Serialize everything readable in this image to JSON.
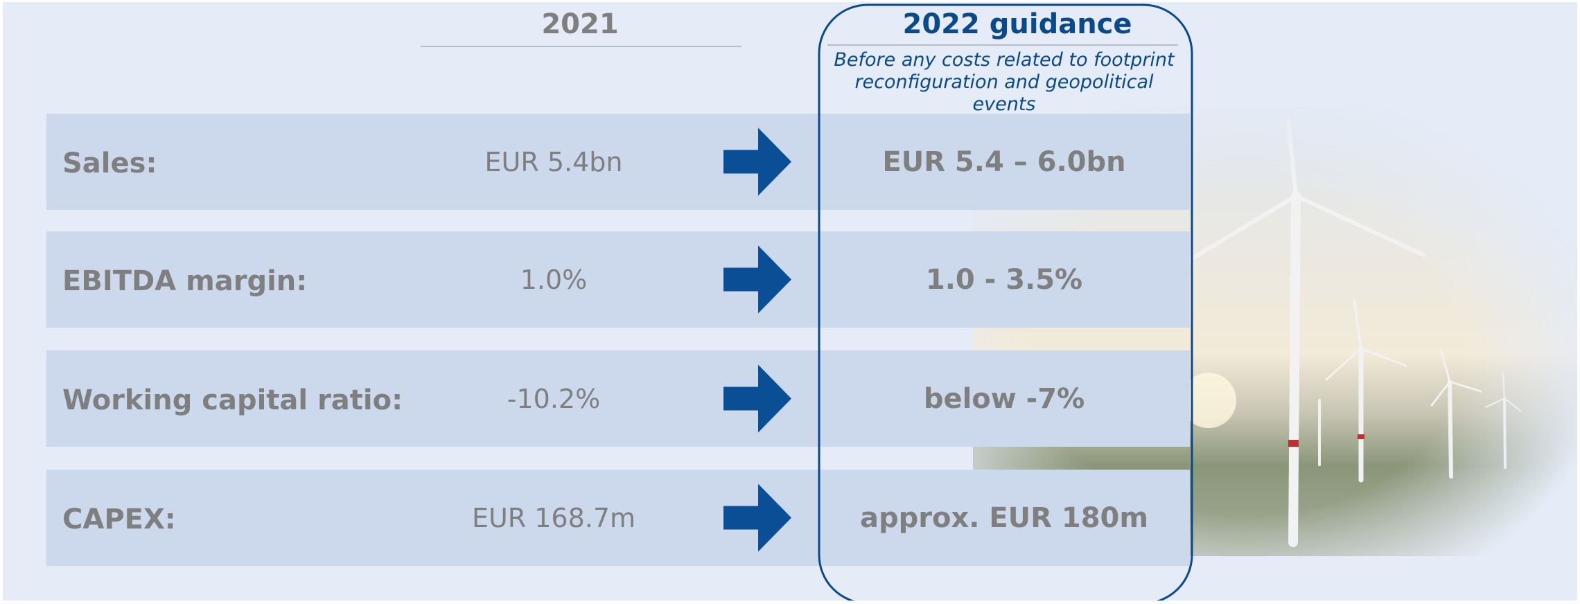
{
  "header": {
    "col_2021": "2021",
    "col_guidance": "2022 guidance",
    "guidance_note": [
      "Before any costs related to footprint",
      "reconfiguration and geopolitical",
      "events"
    ]
  },
  "rows": [
    {
      "label": "Sales:",
      "value_2021": "EUR 5.4bn",
      "guidance": "EUR 5.4 – 6.0bn"
    },
    {
      "label": "EBITDA margin:",
      "value_2021": "1.0%",
      "guidance": "1.0 - 3.5%"
    },
    {
      "label": "Working capital ratio:",
      "value_2021": "-10.2%",
      "guidance": "below -7%"
    },
    {
      "label": "CAPEX:",
      "value_2021": "EUR 168.7m",
      "guidance": "approx. EUR 180m"
    }
  ]
}
